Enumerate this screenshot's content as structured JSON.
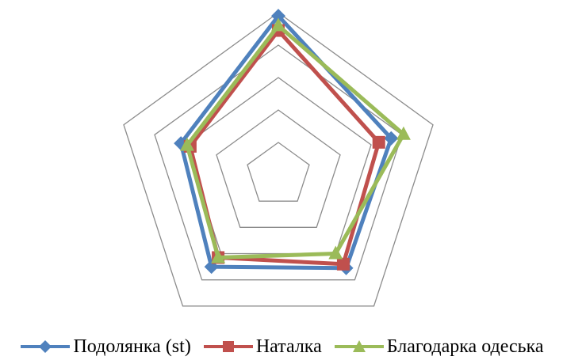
{
  "chart_data": {
    "type": "radar",
    "axes_count": 5,
    "grid_levels": [
      1,
      2,
      3,
      4,
      5
    ],
    "r_range": [
      0,
      5
    ],
    "grid": true,
    "legend_position": "bottom",
    "series": [
      {
        "name": "Подолянка (st)",
        "color": "#4f81bd",
        "marker": "diamond",
        "values": [
          4.9,
          3.65,
          3.55,
          3.5,
          3.15
        ]
      },
      {
        "name": "Наталка",
        "color": "#c0504d",
        "marker": "square",
        "values": [
          4.45,
          3.25,
          3.4,
          3.15,
          2.85
        ]
      },
      {
        "name": "Благодарка одеська",
        "color": "#9bbb59",
        "marker": "triangle",
        "values": [
          4.6,
          4.05,
          3.0,
          3.15,
          2.95
        ]
      }
    ]
  }
}
